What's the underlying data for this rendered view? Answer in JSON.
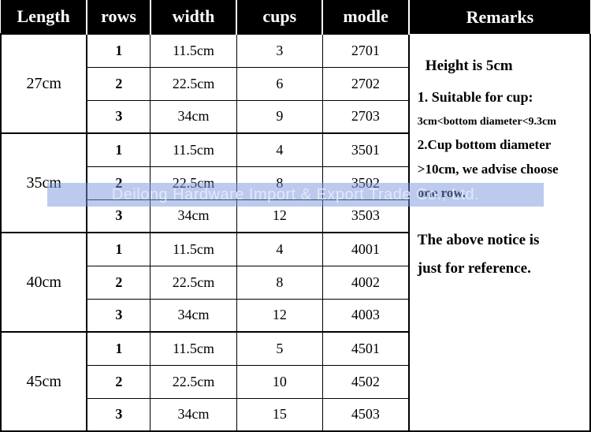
{
  "headers": {
    "length": "Length",
    "rows": "rows",
    "width": "width",
    "cups": "cups",
    "modle": "modle",
    "remarks": "Remarks"
  },
  "groups": [
    {
      "length": "27cm",
      "items": [
        {
          "rows": "1",
          "width": "11.5cm",
          "cups": "3",
          "modle": "2701"
        },
        {
          "rows": "2",
          "width": "22.5cm",
          "cups": "6",
          "modle": "2702"
        },
        {
          "rows": "3",
          "width": "34cm",
          "cups": "9",
          "modle": "2703"
        }
      ]
    },
    {
      "length": "35cm",
      "items": [
        {
          "rows": "1",
          "width": "11.5cm",
          "cups": "4",
          "modle": "3501"
        },
        {
          "rows": "2",
          "width": "22.5cm",
          "cups": "8",
          "modle": "3502"
        },
        {
          "rows": "3",
          "width": "34cm",
          "cups": "12",
          "modle": "3503"
        }
      ]
    },
    {
      "length": "40cm",
      "items": [
        {
          "rows": "1",
          "width": "11.5cm",
          "cups": "4",
          "modle": "4001"
        },
        {
          "rows": "2",
          "width": "22.5cm",
          "cups": "8",
          "modle": "4002"
        },
        {
          "rows": "3",
          "width": "34cm",
          "cups": "12",
          "modle": "4003"
        }
      ]
    },
    {
      "length": "45cm",
      "items": [
        {
          "rows": "1",
          "width": "11.5cm",
          "cups": "5",
          "modle": "4501"
        },
        {
          "rows": "2",
          "width": "22.5cm",
          "cups": "10",
          "modle": "4502"
        },
        {
          "rows": "3",
          "width": "34cm",
          "cups": "15",
          "modle": "4503"
        }
      ]
    }
  ],
  "remarks": {
    "heightLine": "Height is 5cm",
    "line1Label": "1. Suitable for cup:",
    "line1Detail": "3cm<bottom diameter<9.3cm",
    "line2Label": "2.Cup bottom diameter",
    "line2Detail": ">10cm, we advise choose",
    "line2Detail2": "one row.",
    "footer1": "The above notice is",
    "footer2": "just for reference."
  },
  "watermark": "Deilong Hardware Import & Export Trade Co., Ltd.",
  "style": {
    "header_bg": "#000000",
    "header_fg": "#ffffff",
    "border_color": "#000000",
    "header_fontsize": 22,
    "cell_fontsize": 18,
    "watermark_bg": "rgba(120,150,220,0.5)",
    "watermark_fg": "rgba(230,236,250,0.9)"
  }
}
